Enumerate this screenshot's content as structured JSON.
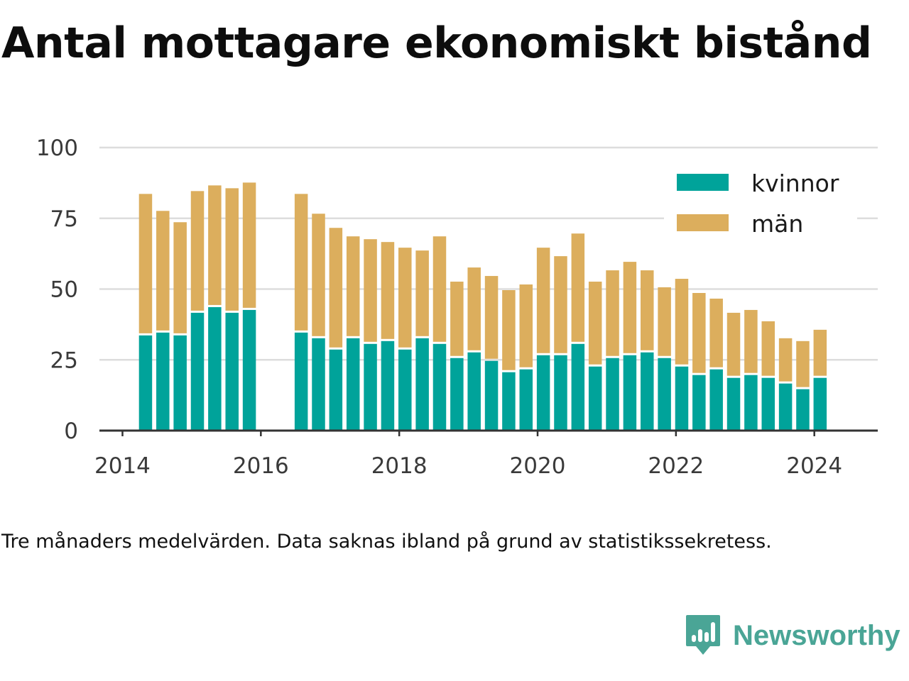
{
  "title": "Antal mottagare ekonomiskt bistånd",
  "caption": "Tre månaders medelvärden. Data saknas ibland på grund av statistikssekretess.",
  "brand": {
    "name": "Newsworthy",
    "logo_icon": "newsworthy-chart-bubble-icon",
    "color": "#4aa596"
  },
  "colors": {
    "kvinnor": "#00a39a",
    "man": "#dcae5d",
    "grid": "#dddddd",
    "axis": "#333333"
  },
  "chart_data": {
    "type": "bar",
    "stacked": true,
    "x": [
      "2014-05",
      "2014-08",
      "2014-11",
      "2015-02",
      "2015-05",
      "2015-08",
      "2015-11",
      "2016-08",
      "2016-11",
      "2017-02",
      "2017-05",
      "2017-08",
      "2017-11",
      "2018-02",
      "2018-05",
      "2018-08",
      "2018-11",
      "2019-02",
      "2019-05",
      "2019-08",
      "2019-11",
      "2020-02",
      "2020-05",
      "2020-08",
      "2020-11",
      "2021-02",
      "2021-05",
      "2021-08",
      "2021-11",
      "2022-02",
      "2022-05",
      "2022-08",
      "2022-11",
      "2023-02",
      "2023-05",
      "2023-08",
      "2023-11",
      "2024-02"
    ],
    "series": [
      {
        "name": "kvinnor",
        "color": "#00a39a",
        "values": [
          34,
          35,
          34,
          42,
          44,
          42,
          43,
          35,
          33,
          29,
          33,
          31,
          32,
          29,
          33,
          31,
          26,
          28,
          25,
          21,
          22,
          27,
          27,
          31,
          23,
          26,
          27,
          28,
          26,
          23,
          20,
          22,
          19,
          20,
          19,
          17,
          15,
          19
        ]
      },
      {
        "name": "män",
        "color": "#dcae5d",
        "values": [
          50,
          43,
          40,
          43,
          43,
          44,
          45,
          49,
          44,
          43,
          36,
          37,
          35,
          36,
          31,
          38,
          27,
          30,
          30,
          29,
          30,
          38,
          35,
          39,
          30,
          31,
          33,
          29,
          25,
          31,
          29,
          25,
          23,
          23,
          20,
          16,
          17,
          17
        ]
      }
    ],
    "x_ticks": [
      "2014",
      "2016",
      "2018",
      "2020",
      "2022",
      "2024"
    ],
    "y_ticks": [
      "0",
      "25",
      "50",
      "75",
      "100"
    ],
    "ylim": [
      0,
      100
    ],
    "xlim": [
      "2013-09",
      "2024-12"
    ],
    "grid": "horizontal",
    "legend": {
      "position": "top-right",
      "entries": [
        "kvinnor",
        "män"
      ]
    }
  }
}
